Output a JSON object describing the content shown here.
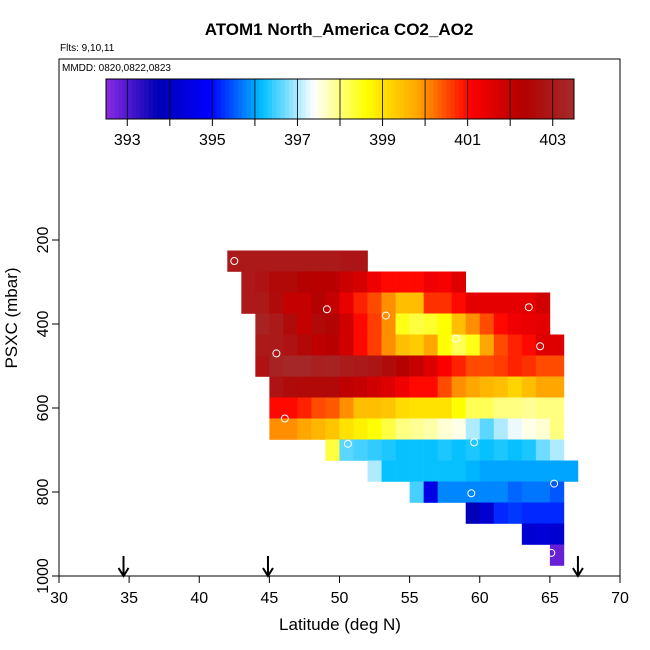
{
  "chart_data": {
    "type": "heatmap",
    "title": "ATOM1 North_America CO2_AO2",
    "subtitle_flights": "Flts: 9,10,11",
    "subtitle_dates": "MMDD: 0820,0822,0823",
    "xlabel": "Latitude (deg N)",
    "ylabel": "PSXC (mbar)",
    "xlim": [
      30,
      70
    ],
    "ylim": [
      1000,
      0
    ],
    "x_ticks": [
      "30",
      "35",
      "40",
      "45",
      "50",
      "55",
      "60",
      "65",
      "70"
    ],
    "y_ticks": [
      "200",
      "400",
      "600",
      "800",
      "1000"
    ],
    "colorbar": {
      "min": 392.5,
      "max": 403.5,
      "tick_labels": [
        "393",
        "395",
        "397",
        "399",
        "401",
        "403"
      ],
      "tick_values": [
        393,
        395,
        397,
        399,
        401,
        403
      ],
      "stops": [
        "#8a2be2",
        "#0000b4",
        "#0000ff",
        "#00bfff",
        "#ffffff",
        "#ffff00",
        "#ffa500",
        "#ff0000",
        "#b40000",
        "#a52a2a"
      ]
    },
    "cell_size": {
      "lat": 1,
      "pres": 50
    },
    "rows": [
      {
        "p": 250,
        "start": 42,
        "values": [
          403,
          403,
          403,
          403,
          403,
          403,
          403,
          403,
          402.9,
          402.9
        ]
      },
      {
        "p": 300,
        "start": 43,
        "values": [
          403,
          402.8,
          402.5,
          402.5,
          402.3,
          402.2,
          402.2,
          401.9,
          401.7,
          401.3,
          401,
          401,
          401,
          401.3,
          401.2,
          401.6
        ]
      },
      {
        "p": 350,
        "start": 43,
        "values": [
          403,
          403,
          402.6,
          402,
          402,
          402.3,
          402,
          401.4,
          400.8,
          400.5,
          400,
          399.5,
          399.5,
          400.7,
          400.7,
          401,
          401.5,
          401.5,
          401.5,
          401.5,
          401.5,
          401.8
        ]
      },
      {
        "p": 400,
        "start": 44,
        "values": [
          403.3,
          403,
          402.6,
          402,
          402.5,
          402.4,
          401.8,
          401,
          400.6,
          400,
          398.5,
          398.3,
          398.4,
          398.6,
          399.5,
          400,
          400.5,
          401,
          401.3,
          401.4,
          401.5
        ]
      },
      {
        "p": 450,
        "start": 44,
        "values": [
          403,
          403,
          402.8,
          402.5,
          402.1,
          402.2,
          401.8,
          401,
          400.6,
          400,
          399.5,
          399.3,
          399.8,
          398.6,
          398.2,
          398.5,
          399.8,
          400.5,
          400.8,
          401,
          401.6,
          401.6
        ]
      },
      {
        "p": 500,
        "start": 44,
        "values": [
          402.8,
          403.3,
          403.4,
          403.4,
          403.2,
          403.3,
          403.1,
          403,
          402.9,
          402.6,
          402.3,
          402,
          401.6,
          401.1,
          400.8,
          400.5,
          400.5,
          400.6,
          400.8,
          400.7,
          400.5,
          400.5
        ]
      },
      {
        "p": 550,
        "start": 45,
        "values": [
          402.8,
          402.6,
          402.5,
          402.5,
          402.5,
          402.1,
          402,
          401.8,
          401.6,
          401.3,
          401,
          401,
          400.5,
          400,
          399.8,
          399.6,
          399.5,
          399.2,
          399.5,
          399.8,
          399.8
        ]
      },
      {
        "p": 600,
        "start": 45,
        "values": [
          401,
          401,
          400.8,
          400.5,
          400.4,
          400,
          399.5,
          399.5,
          399.4,
          399.1,
          399,
          399,
          399,
          398.6,
          398.2,
          398.2,
          398,
          398,
          397.9,
          398,
          398
        ]
      },
      {
        "p": 650,
        "start": 45,
        "values": [
          400,
          400,
          399.8,
          399.6,
          399.4,
          399,
          398.8,
          398.6,
          398.3,
          398,
          397.9,
          397.8,
          397.6,
          397.5,
          397,
          396.6,
          397,
          397.3,
          397.5,
          397.6,
          398
        ]
      },
      {
        "p": 700,
        "start": 49,
        "values": [
          398.3,
          396.6,
          396.5,
          396.4,
          396.3,
          396.2,
          396.2,
          396.2,
          396.3,
          396.2,
          396.3,
          396.2,
          396.3,
          396.2,
          396.3,
          396.7,
          397
        ]
      },
      {
        "p": 750,
        "start": 52,
        "values": [
          397,
          396.2,
          396.2,
          396.2,
          396.2,
          396.2,
          396.2,
          396.1,
          396,
          396,
          396,
          396,
          396,
          396,
          396
        ]
      },
      {
        "p": 800,
        "start": 55,
        "values": [
          396.5,
          394.5,
          395.8,
          395.8,
          395.8,
          395.8,
          395.8,
          395.6,
          395.7,
          395.7,
          395.5
        ]
      },
      {
        "p": 850,
        "start": 59,
        "values": [
          393.8,
          394.2,
          395.2,
          395.3,
          395.2,
          395.2,
          395.2
        ]
      },
      {
        "p": 900,
        "start": 63,
        "values": [
          394.2,
          394.3,
          394.2
        ]
      },
      {
        "p": 950,
        "start": 65,
        "values": [
          392.8
        ]
      }
    ],
    "flight_points": [
      {
        "lat": 42.5,
        "p": 250
      },
      {
        "lat": 51.7,
        "p": 215
      },
      {
        "lat": 49.1,
        "p": 365
      },
      {
        "lat": 53.3,
        "p": 380
      },
      {
        "lat": 63.5,
        "p": 360
      },
      {
        "lat": 58.3,
        "p": 435
      },
      {
        "lat": 64.3,
        "p": 453
      },
      {
        "lat": 45.5,
        "p": 470
      },
      {
        "lat": 46.1,
        "p": 625
      },
      {
        "lat": 50.6,
        "p": 685
      },
      {
        "lat": 59.6,
        "p": 682
      },
      {
        "lat": 65.3,
        "p": 780
      },
      {
        "lat": 59.4,
        "p": 803
      },
      {
        "lat": 65.1,
        "p": 945
      }
    ],
    "arrow_markers_lat": [
      34.6,
      44.9,
      67.0
    ]
  }
}
